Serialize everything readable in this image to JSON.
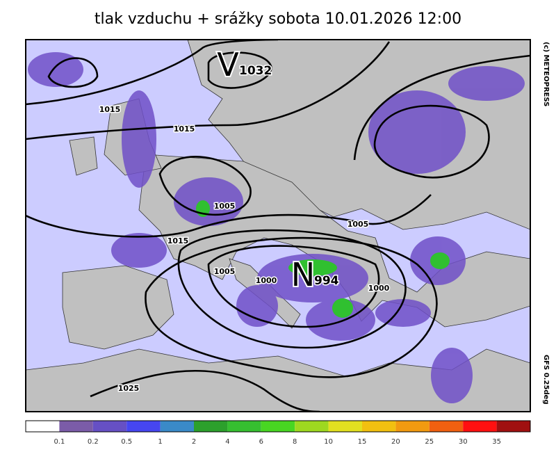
{
  "header": {
    "title": "tlak vzduchu + srážky  sobota 10.01.2026 12:00"
  },
  "side": {
    "copyright": "(c) METEOPRESS",
    "model": "GFS 0.25deg"
  },
  "map": {
    "isobar_labels": [
      1015,
      1015,
      1005,
      1015,
      1005,
      1005,
      1000,
      1000,
      1025
    ],
    "centers": [
      {
        "letter": "V",
        "value": 1032
      },
      {
        "letter": "N",
        "value": 994
      }
    ]
  },
  "legend": {
    "colors": [
      "#ffffff",
      "#7b5ca8",
      "#6650c4",
      "#4646f0",
      "#3a8ac8",
      "#2ca02c",
      "#36bf30",
      "#48d622",
      "#9ed820",
      "#e2e020",
      "#f2c010",
      "#f29a10",
      "#f06010",
      "#ff1010",
      "#a01010"
    ],
    "ticks": [
      0.1,
      0.2,
      0.5,
      1,
      2,
      4,
      6,
      8,
      10,
      15,
      20,
      25,
      30,
      35
    ]
  }
}
